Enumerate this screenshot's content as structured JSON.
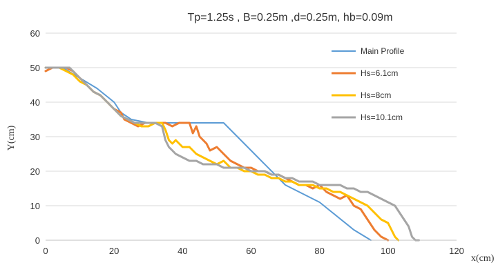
{
  "chart_data": {
    "type": "line",
    "title": "Tp=1.25s , B=0.25m ,d=0.25m, hb=0.09m",
    "xlabel": "x(cm)",
    "ylabel": "Y(cm)",
    "xlim": [
      0,
      120
    ],
    "ylim": [
      0,
      60
    ],
    "xticks": [
      0,
      20,
      40,
      60,
      80,
      100,
      120
    ],
    "yticks": [
      0,
      10,
      20,
      30,
      40,
      50,
      60
    ],
    "grid": "horizontal",
    "legend_position": "right",
    "series": [
      {
        "name": "Main Profile",
        "color": "#5B9BD5",
        "x": [
          0,
          5,
          10,
          15,
          20,
          22,
          25,
          30,
          35,
          40,
          45,
          52,
          60,
          70,
          80,
          90,
          95
        ],
        "y": [
          50,
          50,
          47,
          44,
          40,
          37,
          35,
          34,
          34,
          34,
          34,
          34,
          26,
          16,
          11,
          3,
          0
        ]
      },
      {
        "name": "Hs=6.1cm",
        "color": "#ED7D31",
        "x": [
          0,
          2,
          4,
          6,
          8,
          10,
          12,
          14,
          16,
          18,
          20,
          22,
          23,
          25,
          27,
          29,
          31,
          33,
          35,
          37,
          39,
          41,
          42,
          43,
          44,
          45,
          46,
          47,
          48,
          50,
          52,
          54,
          56,
          58,
          60,
          62,
          64,
          66,
          68,
          70,
          72,
          74,
          76,
          78,
          80,
          82,
          84,
          86,
          88,
          90,
          92,
          94,
          96,
          98,
          100
        ],
        "y": [
          49,
          50,
          50,
          50,
          49,
          47,
          45,
          43,
          42,
          40,
          38,
          37,
          35,
          34,
          33,
          34,
          34,
          34,
          34,
          33,
          34,
          34,
          34,
          31,
          33,
          30,
          29,
          28,
          26,
          27,
          25,
          23,
          22,
          21,
          21,
          20,
          20,
          19,
          19,
          18,
          17,
          16,
          16,
          15,
          16,
          14,
          13,
          12,
          13,
          10,
          9,
          6,
          3,
          1,
          0
        ]
      },
      {
        "name": "Hs=8cm",
        "color": "#FFC000",
        "x": [
          0,
          2,
          4,
          6,
          8,
          10,
          12,
          14,
          16,
          18,
          20,
          22,
          24,
          26,
          28,
          30,
          32,
          34,
          35,
          36,
          37,
          38,
          40,
          42,
          44,
          46,
          48,
          50,
          52,
          54,
          56,
          58,
          60,
          62,
          64,
          66,
          68,
          70,
          72,
          74,
          76,
          78,
          80,
          82,
          84,
          86,
          88,
          90,
          92,
          94,
          96,
          98,
          100,
          101,
          102,
          103
        ],
        "y": [
          50,
          50,
          50,
          49,
          48,
          46,
          45,
          43,
          42,
          40,
          38,
          36,
          35,
          34,
          33,
          33,
          34,
          34,
          32,
          29,
          28,
          29,
          27,
          27,
          25,
          24,
          23,
          22,
          23,
          21,
          21,
          20,
          20,
          19,
          19,
          18,
          18,
          17,
          17,
          16,
          16,
          16,
          15,
          15,
          14,
          14,
          13,
          12,
          11,
          10,
          8,
          6,
          5,
          3,
          1,
          0
        ]
      },
      {
        "name": "Hs=10.1cm",
        "color": "#A5A5A5",
        "x": [
          0,
          2,
          4,
          6,
          7,
          8,
          10,
          12,
          14,
          16,
          18,
          20,
          22,
          24,
          26,
          28,
          30,
          32,
          34,
          35,
          36,
          37,
          38,
          40,
          42,
          44,
          46,
          48,
          50,
          52,
          54,
          56,
          58,
          60,
          62,
          64,
          66,
          68,
          70,
          72,
          74,
          76,
          78,
          80,
          82,
          84,
          86,
          88,
          90,
          92,
          94,
          96,
          98,
          100,
          102,
          104,
          106,
          107,
          108,
          109
        ],
        "y": [
          50,
          50,
          50,
          50,
          50,
          49,
          47,
          45,
          43,
          42,
          40,
          38,
          36,
          35,
          34,
          34,
          34,
          34,
          33,
          29,
          27,
          26,
          25,
          24,
          23,
          23,
          22,
          22,
          22,
          21,
          21,
          21,
          21,
          20,
          20,
          20,
          19,
          19,
          18,
          18,
          17,
          17,
          17,
          16,
          16,
          16,
          16,
          15,
          15,
          14,
          14,
          13,
          12,
          11,
          10,
          7,
          4,
          1,
          0,
          0
        ]
      }
    ]
  }
}
